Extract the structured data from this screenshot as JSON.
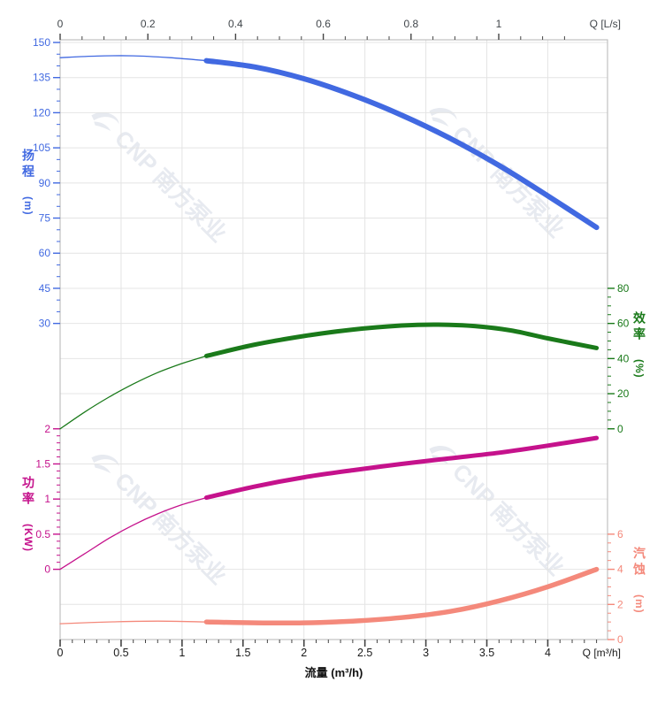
{
  "watermark": {
    "text": "CNP 南方泵业"
  },
  "chart_data": {
    "type": "line",
    "title": "",
    "x_axis_bottom": {
      "title": "流量 (m³/h)",
      "unit_label": "Q [m³/h]",
      "ticks": [
        0,
        0.5,
        1,
        1.5,
        2,
        2.5,
        3,
        3.5,
        4
      ],
      "minor_step": 0.1,
      "major_step": 0.5,
      "range": [
        0,
        4.49
      ]
    },
    "x_axis_top": {
      "unit_label": "Q [L/s]",
      "ticks": [
        0,
        0.2,
        0.4,
        0.6,
        0.8,
        1
      ],
      "minor_step": 0.05,
      "major_step": 0.2,
      "range": [
        0,
        1.248
      ]
    },
    "grid": {
      "rows": 17,
      "on": true
    },
    "y_axes": [
      {
        "id": "head",
        "title": "扬程",
        "unit": "(m)",
        "color": "#4169e1",
        "side": "left",
        "ticks": [
          150,
          135,
          120,
          105,
          90,
          75,
          60,
          45,
          30
        ],
        "top_row": 0,
        "row_step_value": 15,
        "minor_per_interval": 2
      },
      {
        "id": "efficiency",
        "title": "效率",
        "unit": "(%)",
        "color": "#1a7a1a",
        "side": "right",
        "ticks": [
          80,
          60,
          40,
          20,
          0
        ],
        "top_row": 7,
        "row_step_value": 20,
        "minor_per_interval": 3
      },
      {
        "id": "power",
        "title": "功率",
        "unit": "(KW)",
        "color": "#c5128c",
        "side": "left",
        "ticks": [
          2,
          1.5,
          1,
          0.5,
          0
        ],
        "top_row": 11,
        "row_step_value": 0.5,
        "minor_per_interval": 4
      },
      {
        "id": "npsh",
        "title": "汽蚀",
        "unit": "(m)",
        "color": "#f4897b",
        "side": "right",
        "ticks": [
          6,
          4,
          2,
          0
        ],
        "top_row": 14,
        "row_step_value": 2,
        "minor_per_interval": 3
      }
    ],
    "series": [
      {
        "id": "head-curve",
        "name": "扬程",
        "axis": "head",
        "color": "#4169e1",
        "thin_until": 1.2,
        "points": [
          [
            0,
            143.5
          ],
          [
            0.3,
            144.2
          ],
          [
            0.6,
            144.3
          ],
          [
            0.9,
            143.5
          ],
          [
            1.2,
            142.2
          ],
          [
            1.6,
            139.5
          ],
          [
            2.0,
            134.5
          ],
          [
            2.4,
            127.5
          ],
          [
            2.8,
            119
          ],
          [
            3.2,
            109
          ],
          [
            3.6,
            97.5
          ],
          [
            4.0,
            84.5
          ],
          [
            4.4,
            71
          ]
        ]
      },
      {
        "id": "efficiency-curve",
        "name": "效率",
        "axis": "efficiency",
        "color": "#1a7a1a",
        "thin_until": 1.2,
        "points": [
          [
            0,
            0
          ],
          [
            0.2,
            9.5
          ],
          [
            0.4,
            18
          ],
          [
            0.6,
            25.5
          ],
          [
            0.8,
            32
          ],
          [
            1.0,
            37.2
          ],
          [
            1.2,
            41.5
          ],
          [
            1.6,
            48
          ],
          [
            2.0,
            52.8
          ],
          [
            2.4,
            56.5
          ],
          [
            2.8,
            58.8
          ],
          [
            3.1,
            59.3
          ],
          [
            3.4,
            58.5
          ],
          [
            3.7,
            56
          ],
          [
            4.0,
            51.5
          ],
          [
            4.4,
            46
          ]
        ]
      },
      {
        "id": "power-curve",
        "name": "功率",
        "axis": "power",
        "color": "#c5128c",
        "thin_until": 1.2,
        "points": [
          [
            0,
            0
          ],
          [
            0.2,
            0.22
          ],
          [
            0.4,
            0.44
          ],
          [
            0.6,
            0.63
          ],
          [
            0.8,
            0.79
          ],
          [
            1.0,
            0.92
          ],
          [
            1.2,
            1.02
          ],
          [
            1.6,
            1.18
          ],
          [
            2.0,
            1.31
          ],
          [
            2.4,
            1.41
          ],
          [
            2.8,
            1.5
          ],
          [
            3.2,
            1.58
          ],
          [
            3.6,
            1.66
          ],
          [
            4.0,
            1.76
          ],
          [
            4.4,
            1.87
          ]
        ]
      },
      {
        "id": "npsh-curve",
        "name": "汽蚀",
        "axis": "npsh",
        "color": "#f4897b",
        "thin_until": 1.2,
        "points": [
          [
            0,
            0.9
          ],
          [
            0.4,
            1.0
          ],
          [
            0.8,
            1.05
          ],
          [
            1.2,
            1.0
          ],
          [
            1.6,
            0.95
          ],
          [
            2.0,
            0.95
          ],
          [
            2.4,
            1.05
          ],
          [
            2.8,
            1.25
          ],
          [
            3.2,
            1.6
          ],
          [
            3.6,
            2.2
          ],
          [
            4.0,
            3.0
          ],
          [
            4.4,
            4.0
          ]
        ]
      }
    ],
    "colors": {
      "grid": "#e4e4e4",
      "frame": "#c0c0c0",
      "ruler_tick": "#444444",
      "top_label": "#41464b",
      "bottom_label": "#1a1a1a",
      "watermark": "#e7eaf0"
    }
  }
}
